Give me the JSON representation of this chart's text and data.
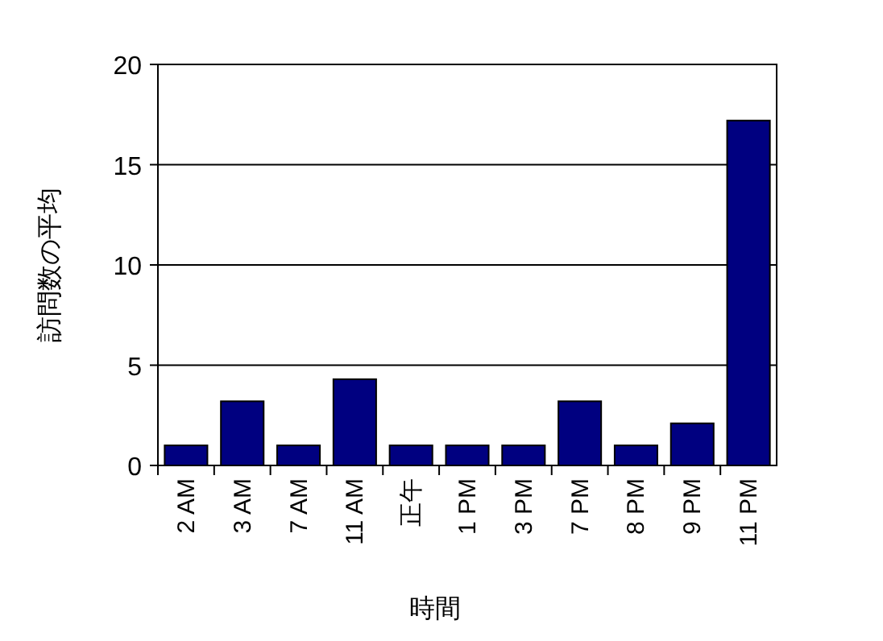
{
  "chart_data": {
    "type": "bar",
    "xlabel": "時間",
    "ylabel": "訪問数の平均",
    "categories": [
      "2 AM",
      "3 AM",
      "7 AM",
      "11 AM",
      "正午",
      "1 PM",
      "3 PM",
      "7 PM",
      "8 PM",
      "9 PM",
      "11 PM"
    ],
    "values": [
      1,
      3.2,
      1,
      4.3,
      1,
      1,
      1,
      3.2,
      1,
      2.1,
      17.2
    ],
    "color": "#000080",
    "ylim": [
      0,
      20
    ],
    "yticks": [
      0,
      5,
      10,
      15,
      20
    ],
    "grid": "y"
  }
}
